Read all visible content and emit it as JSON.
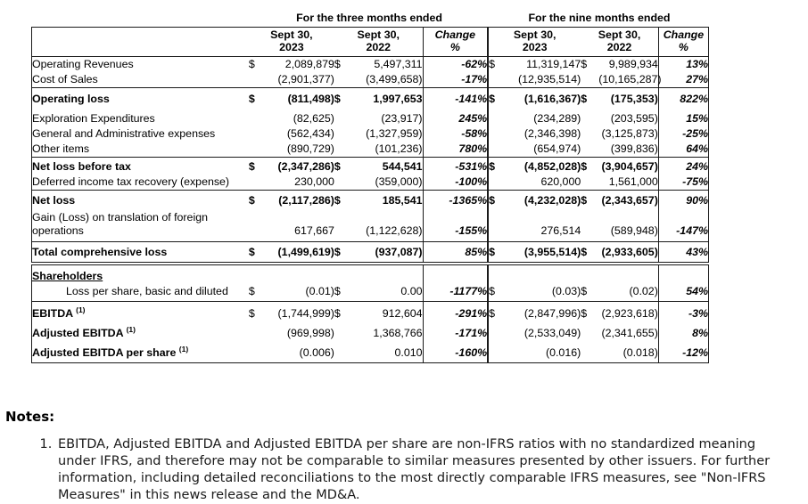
{
  "table": {
    "currency_symbol": "$",
    "period_groups": [
      {
        "label": "For the three months ended"
      },
      {
        "label": "For the nine months ended"
      }
    ],
    "column_headers": [
      {
        "line1": "Sept 30,",
        "line2": "2023"
      },
      {
        "line1": "Sept 30,",
        "line2": "2022"
      },
      {
        "line1": "Change",
        "line2": "%"
      },
      {
        "line1": "Sept 30,",
        "line2": "2023"
      },
      {
        "line1": "Sept 30,",
        "line2": "2022"
      },
      {
        "line1": "Change",
        "line2": "%"
      }
    ],
    "rows": [
      {
        "label": "Operating Revenues",
        "dollar": true,
        "classes": "",
        "values": [
          "2,089,879",
          "5,497,311",
          "-62%",
          "11,319,147",
          "9,989,934",
          "13%"
        ]
      },
      {
        "label": "Cost of Sales",
        "dollar": false,
        "classes": "rule",
        "values": [
          "(2,901,377)",
          "(3,499,658)",
          "-17%",
          "(12,935,514)",
          "(10,165,287)",
          "27%"
        ]
      },
      {
        "label": "Operating loss",
        "dollar": true,
        "classes": "bold padtall",
        "values": [
          "(811,498)",
          "1,997,653",
          "-141%",
          "(1,616,367)",
          "(175,353)",
          "822%"
        ]
      },
      {
        "label": "Exploration Expenditures",
        "dollar": false,
        "classes": "",
        "values": [
          "(82,625)",
          "(23,917)",
          "245%",
          "(234,289)",
          "(203,595)",
          "15%"
        ]
      },
      {
        "label": "General and Administrative expenses",
        "dollar": false,
        "classes": "",
        "values": [
          "(562,434)",
          "(1,327,959)",
          "-58%",
          "(2,346,398)",
          "(3,125,873)",
          "-25%"
        ]
      },
      {
        "label": "Other items",
        "dollar": false,
        "classes": "rule",
        "values": [
          "(890,729)",
          "(101,236)",
          "780%",
          "(654,974)",
          "(399,836)",
          "64%"
        ]
      },
      {
        "label": "Net loss before tax",
        "dollar": true,
        "classes": "bold padsm",
        "values": [
          "(2,347,286)",
          "544,541",
          "-531%",
          "(4,852,028)",
          "(3,904,657)",
          "24%"
        ]
      },
      {
        "label": "Deferred income tax recovery (expense)",
        "dollar": false,
        "classes": "rule",
        "values": [
          "230,000",
          "(359,000)",
          "-100%",
          "620,000",
          "1,561,000",
          "-75%"
        ]
      },
      {
        "label": "Net loss",
        "dollar": true,
        "classes": "bold padmd",
        "values": [
          "(2,117,286)",
          "185,541",
          "-1365%",
          "(4,232,028)",
          "(2,343,657)",
          "90%"
        ]
      },
      {
        "label": "Gain (Loss) on translation of foreign operations",
        "dollar": false,
        "classes": "rule pb4",
        "values": [
          "617,667",
          "(1,122,628)",
          "-155%",
          "276,514",
          "(589,948)",
          "-147%"
        ]
      },
      {
        "label": "Total comprehensive loss",
        "dollar": true,
        "classes": "bold thick padmd",
        "values": [
          "(1,499,619)",
          "(937,087)",
          "85%",
          "(3,955,514)",
          "(2,933,605)",
          "43%"
        ]
      },
      {
        "label": "Shareholders",
        "dollar": false,
        "underline": true,
        "classes": "boldlabel pt5",
        "values": [
          "",
          "",
          "",
          "",
          "",
          ""
        ]
      },
      {
        "label": "Loss per share, basic and diluted",
        "dollar": true,
        "indent": true,
        "classes": "rule pb3",
        "values": [
          "(0.01)",
          "0.00",
          "-1177%",
          "(0.03)",
          "(0.02)",
          "54%"
        ]
      },
      {
        "label": "EBITDA",
        "sup": "(1)",
        "dollar": true,
        "classes": "boldlabel pt6",
        "values": [
          "(1,744,999)",
          "912,604",
          "-291%",
          "(2,847,996)",
          "(2,923,618)",
          "-3%"
        ]
      },
      {
        "label": "Adjusted EBITDA",
        "sup": "(1)",
        "dollar": false,
        "classes": "boldlabel pt6",
        "values": [
          "(969,998)",
          "1,368,766",
          "-171%",
          "(2,533,049)",
          "(2,341,655)",
          "8%"
        ]
      },
      {
        "label": "Adjusted EBITDA per share",
        "sup": "(1)",
        "dollar": false,
        "classes": "boldlabel pt6 pb3",
        "values": [
          "(0.006)",
          "0.010",
          "-160%",
          "(0.016)",
          "(0.018)",
          "-12%"
        ]
      }
    ]
  },
  "notes": {
    "heading": "Notes:",
    "items": [
      "EBITDA, Adjusted EBITDA and Adjusted EBITDA per share are non-IFRS ratios with no standardized meaning under IFRS, and therefore may not be comparable to similar measures presented by other issuers. For further information, including detailed reconciliations to the most directly comparable IFRS measures, see \"Non-IFRS Measures\" in this news release and the MD&A."
    ]
  }
}
